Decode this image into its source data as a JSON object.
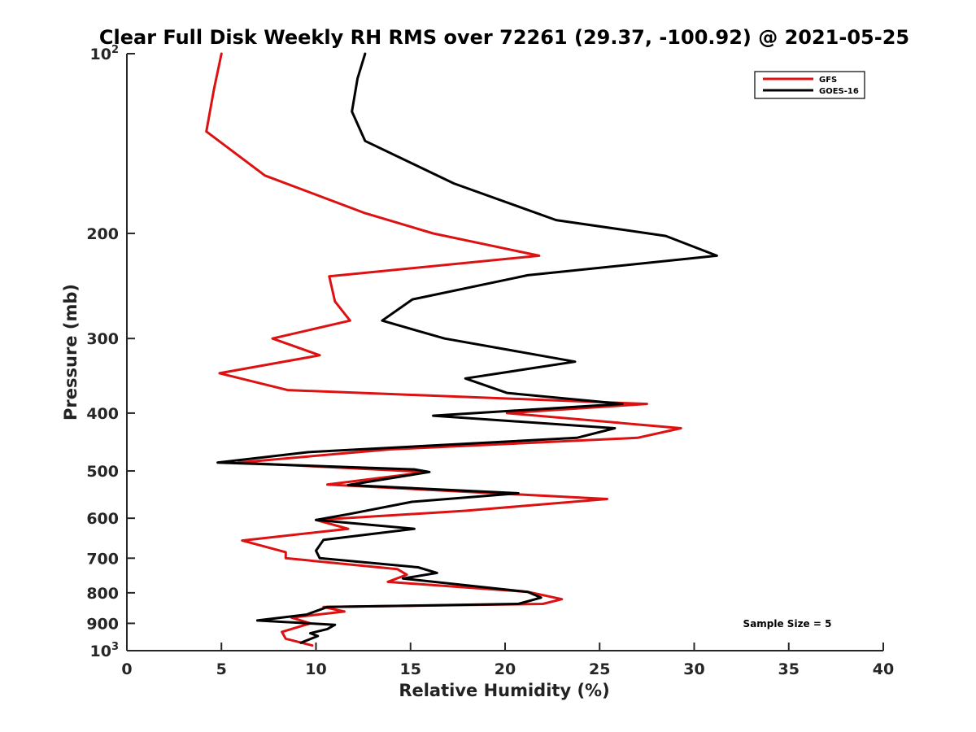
{
  "chart_data": {
    "type": "line",
    "title": "Clear Full Disk Weekly RH RMS over 72261 (29.37, -100.92) @ 2021-05-25",
    "xlabel": "Relative Humidity (%)",
    "ylabel": "Pressure (mb)",
    "xlim": [
      0,
      40
    ],
    "ylim": [
      100,
      1000
    ],
    "y_scale": "log",
    "y_reversed": true,
    "x_ticks": [
      "0",
      "5",
      "10",
      "15",
      "20",
      "25",
      "30",
      "35",
      "40"
    ],
    "x_tick_values": [
      0,
      5,
      10,
      15,
      20,
      25,
      30,
      35,
      40
    ],
    "y_ticks": [
      {
        "value": 100,
        "base": "10",
        "exp": "2"
      },
      {
        "value": 200,
        "base": "200",
        "exp": ""
      },
      {
        "value": 300,
        "base": "300",
        "exp": ""
      },
      {
        "value": 400,
        "base": "400",
        "exp": ""
      },
      {
        "value": 500,
        "base": "500",
        "exp": ""
      },
      {
        "value": 600,
        "base": "600",
        "exp": ""
      },
      {
        "value": 700,
        "base": "700",
        "exp": ""
      },
      {
        "value": 800,
        "base": "800",
        "exp": ""
      },
      {
        "value": 900,
        "base": "900",
        "exp": ""
      },
      {
        "value": 1000,
        "base": "10",
        "exp": "3"
      }
    ],
    "grid": false,
    "legend_position": "top-right",
    "annotation": "Sample Size = 5",
    "series": [
      {
        "name": "GFS",
        "color": "#dd1111",
        "points": [
          [
            5.0,
            100
          ],
          [
            4.6,
            115
          ],
          [
            4.2,
            135
          ],
          [
            7.3,
            160
          ],
          [
            12.6,
            185
          ],
          [
            16.2,
            200
          ],
          [
            21.8,
            218
          ],
          [
            10.7,
            236
          ],
          [
            11.0,
            260
          ],
          [
            11.8,
            280
          ],
          [
            7.7,
            300
          ],
          [
            10.2,
            320
          ],
          [
            4.9,
            343
          ],
          [
            8.5,
            366
          ],
          [
            27.5,
            386
          ],
          [
            20.1,
            400
          ],
          [
            29.3,
            424
          ],
          [
            27.0,
            440
          ],
          [
            13.9,
            460
          ],
          [
            5.9,
            484
          ],
          [
            15.9,
            502
          ],
          [
            10.6,
            527
          ],
          [
            25.4,
            557
          ],
          [
            17.9,
            583
          ],
          [
            10.0,
            604
          ],
          [
            11.7,
            625
          ],
          [
            6.1,
            654
          ],
          [
            8.4,
            684
          ],
          [
            8.4,
            700
          ],
          [
            14.3,
            730
          ],
          [
            14.8,
            746
          ],
          [
            13.8,
            767
          ],
          [
            21.2,
            797
          ],
          [
            23.0,
            820
          ],
          [
            22.0,
            835
          ],
          [
            10.4,
            845
          ],
          [
            11.5,
            860
          ],
          [
            8.7,
            880
          ],
          [
            9.7,
            900
          ],
          [
            8.2,
            930
          ],
          [
            8.4,
            955
          ],
          [
            9.8,
            980
          ]
        ]
      },
      {
        "name": "GOES-16",
        "color": "#000000",
        "points": [
          [
            12.6,
            100
          ],
          [
            12.2,
            110
          ],
          [
            11.9,
            125
          ],
          [
            12.6,
            140
          ],
          [
            17.3,
            165
          ],
          [
            22.7,
            190
          ],
          [
            28.5,
            202
          ],
          [
            31.2,
            218
          ],
          [
            21.2,
            235
          ],
          [
            15.1,
            258
          ],
          [
            13.5,
            280
          ],
          [
            16.8,
            300
          ],
          [
            23.7,
            328
          ],
          [
            17.9,
            350
          ],
          [
            20.1,
            370
          ],
          [
            26.2,
            386
          ],
          [
            16.2,
            404
          ],
          [
            25.8,
            424
          ],
          [
            23.8,
            440
          ],
          [
            9.6,
            465
          ],
          [
            4.8,
            484
          ],
          [
            15.2,
            497
          ],
          [
            16.0,
            502
          ],
          [
            11.7,
            528
          ],
          [
            20.7,
            545
          ],
          [
            15.1,
            563
          ],
          [
            11.8,
            590
          ],
          [
            10.0,
            604
          ],
          [
            15.2,
            625
          ],
          [
            10.4,
            652
          ],
          [
            10.0,
            680
          ],
          [
            10.2,
            700
          ],
          [
            15.4,
            725
          ],
          [
            16.4,
            741
          ],
          [
            14.6,
            757
          ],
          [
            21.2,
            797
          ],
          [
            21.9,
            815
          ],
          [
            20.7,
            835
          ],
          [
            10.6,
            845
          ],
          [
            9.5,
            870
          ],
          [
            6.9,
            890
          ],
          [
            11.0,
            905
          ],
          [
            10.6,
            920
          ],
          [
            9.7,
            935
          ],
          [
            10.1,
            945
          ],
          [
            9.2,
            970
          ]
        ]
      }
    ]
  }
}
